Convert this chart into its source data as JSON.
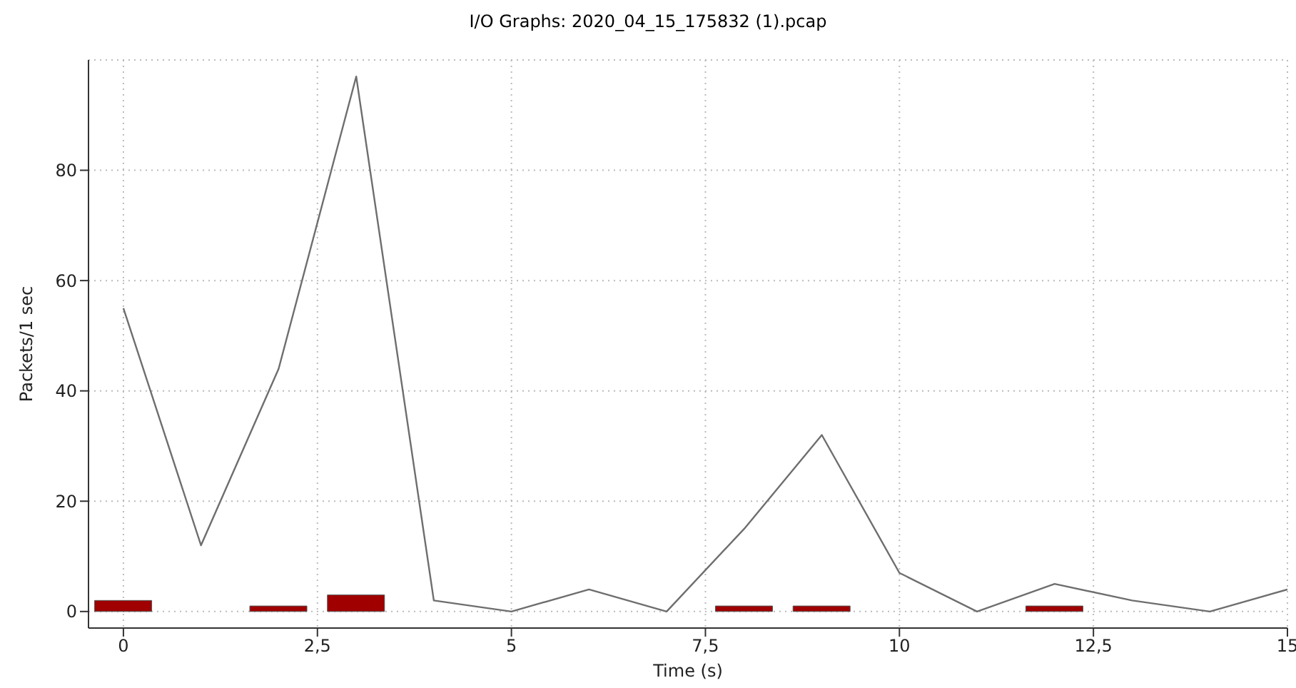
{
  "chart_data": {
    "type": "line",
    "title": "I/O Graphs: 2020_04_15_175832 (1).pcap",
    "xlabel": "Time (s)",
    "ylabel": "Packets/1 sec",
    "series": [
      {
        "color": "#6e6e6e",
        "x": [
          0,
          1,
          2,
          3,
          4,
          5,
          6,
          7,
          8,
          9,
          10,
          11,
          12,
          13,
          14,
          15
        ],
        "values": [
          55,
          12,
          44,
          97,
          2,
          0,
          4,
          0,
          15,
          32,
          7,
          0,
          5,
          2,
          0,
          4
        ]
      },
      {
        "type": "bar",
        "color": "#a00000",
        "x": [
          0,
          1,
          2,
          3,
          4,
          5,
          6,
          7,
          8,
          9,
          10,
          11,
          12
        ],
        "values": [
          2,
          0,
          1,
          3,
          0,
          0,
          0,
          0,
          1,
          1,
          0,
          0,
          1
        ]
      }
    ],
    "xlim": [
      -0.45,
      15
    ],
    "xticks": [
      0,
      {
        "value": 2.5,
        "label": "2,5"
      },
      5,
      {
        "value": 7.5,
        "label": "7,5"
      },
      10,
      {
        "value": 12.5,
        "label": "12,5"
      },
      15
    ],
    "ylim": [
      -3,
      100
    ],
    "yticks": [
      0,
      20,
      40,
      60,
      80
    ],
    "grid": true,
    "marker": "none",
    "line_style": "solid"
  }
}
